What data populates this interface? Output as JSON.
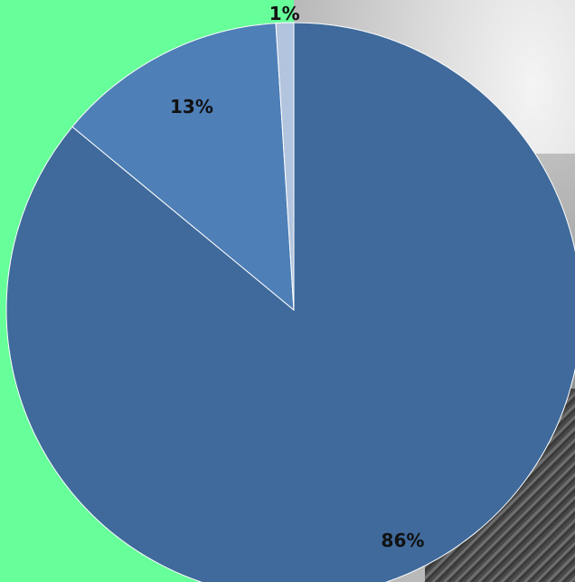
{
  "chart_data": {
    "type": "pie",
    "title": "",
    "start_angle_deg": 0,
    "direction": "clockwise",
    "slices": [
      {
        "label": "86%",
        "value": 86,
        "color": "#3f6a9b"
      },
      {
        "label": "13%",
        "value": 13,
        "color": "#4e7fb7"
      },
      {
        "label": "1%",
        "value": 1,
        "color": "#b3c4de"
      }
    ]
  },
  "colors": {
    "page_background": "#66ff99",
    "slice_border": "#ffffff"
  }
}
